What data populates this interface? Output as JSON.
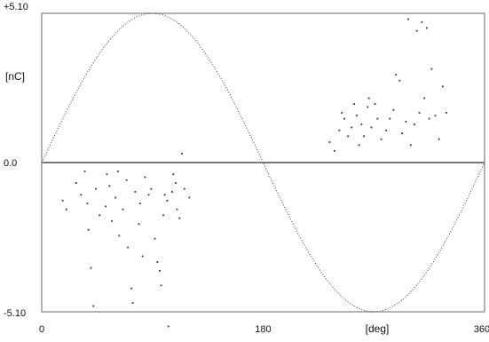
{
  "chart_data": {
    "type": "scatter",
    "title": "",
    "x_unit": "[deg]",
    "y_unit": "[nC]",
    "x_ticks": [
      "0",
      "180",
      "360"
    ],
    "y_ticks": [
      "+5.10",
      "0.0",
      "-5.10"
    ],
    "xlim": [
      0,
      360
    ],
    "ylim": [
      -5.1,
      5.1
    ],
    "grid": false,
    "colors": {
      "frame": "#9a9a9a",
      "zero_line": "#7a7a7a",
      "sine": "#555555",
      "points": "#333333"
    },
    "sine_reference": {
      "amplitude": 5.1,
      "period_deg": 360
    },
    "points": [
      [
        17,
        -1.3
      ],
      [
        20,
        -1.6
      ],
      [
        28,
        -0.7
      ],
      [
        32,
        -1.1
      ],
      [
        35,
        -0.3
      ],
      [
        37,
        -1.4
      ],
      [
        38,
        -2.3
      ],
      [
        40,
        -3.6
      ],
      [
        42,
        -4.9
      ],
      [
        44,
        -0.9
      ],
      [
        47,
        -1.8
      ],
      [
        52,
        -1.5
      ],
      [
        53,
        -0.4
      ],
      [
        55,
        -0.8
      ],
      [
        57,
        -2.0
      ],
      [
        60,
        -1.2
      ],
      [
        62,
        -0.3
      ],
      [
        63,
        -2.5
      ],
      [
        66,
        -1.6
      ],
      [
        69,
        -0.6
      ],
      [
        70,
        -2.9
      ],
      [
        73,
        -4.3
      ],
      [
        74,
        -4.8
      ],
      [
        76,
        -1.0
      ],
      [
        79,
        -2.1
      ],
      [
        80,
        -1.4
      ],
      [
        82,
        -3.2
      ],
      [
        84,
        -0.5
      ],
      [
        87,
        -1.1
      ],
      [
        89,
        -0.9
      ],
      [
        92,
        -2.6
      ],
      [
        94,
        -3.4
      ],
      [
        96,
        -3.7
      ],
      [
        97,
        -4.2
      ],
      [
        99,
        -1.8
      ],
      [
        100,
        -1.1
      ],
      [
        102,
        -1.3
      ],
      [
        103,
        -5.6
      ],
      [
        106,
        -1.0
      ],
      [
        107,
        -0.4
      ],
      [
        109,
        -0.7
      ],
      [
        110,
        -1.6
      ],
      [
        112,
        -1.9
      ],
      [
        114,
        0.3
      ],
      [
        116,
        -0.9
      ],
      [
        120,
        -1.2
      ],
      [
        234,
        0.7
      ],
      [
        238,
        0.4
      ],
      [
        242,
        1.1
      ],
      [
        244,
        1.7
      ],
      [
        246,
        1.5
      ],
      [
        249,
        0.9
      ],
      [
        252,
        1.2
      ],
      [
        254,
        2.0
      ],
      [
        256,
        1.6
      ],
      [
        258,
        0.6
      ],
      [
        260,
        1.3
      ],
      [
        262,
        0.9
      ],
      [
        265,
        1.9
      ],
      [
        266,
        2.2
      ],
      [
        268,
        1.2
      ],
      [
        271,
        2.0
      ],
      [
        273,
        1.5
      ],
      [
        276,
        0.8
      ],
      [
        280,
        1.1
      ],
      [
        283,
        1.5
      ],
      [
        286,
        1.8
      ],
      [
        288,
        3.0
      ],
      [
        291,
        2.8
      ],
      [
        293,
        1.0
      ],
      [
        296,
        1.4
      ],
      [
        298,
        4.9
      ],
      [
        300,
        0.6
      ],
      [
        303,
        1.3
      ],
      [
        305,
        4.5
      ],
      [
        307,
        1.7
      ],
      [
        309,
        4.8
      ],
      [
        311,
        2.2
      ],
      [
        313,
        4.6
      ],
      [
        315,
        1.5
      ],
      [
        317,
        3.2
      ],
      [
        320,
        1.6
      ],
      [
        323,
        0.8
      ],
      [
        326,
        2.6
      ],
      [
        329,
        1.7
      ]
    ]
  }
}
